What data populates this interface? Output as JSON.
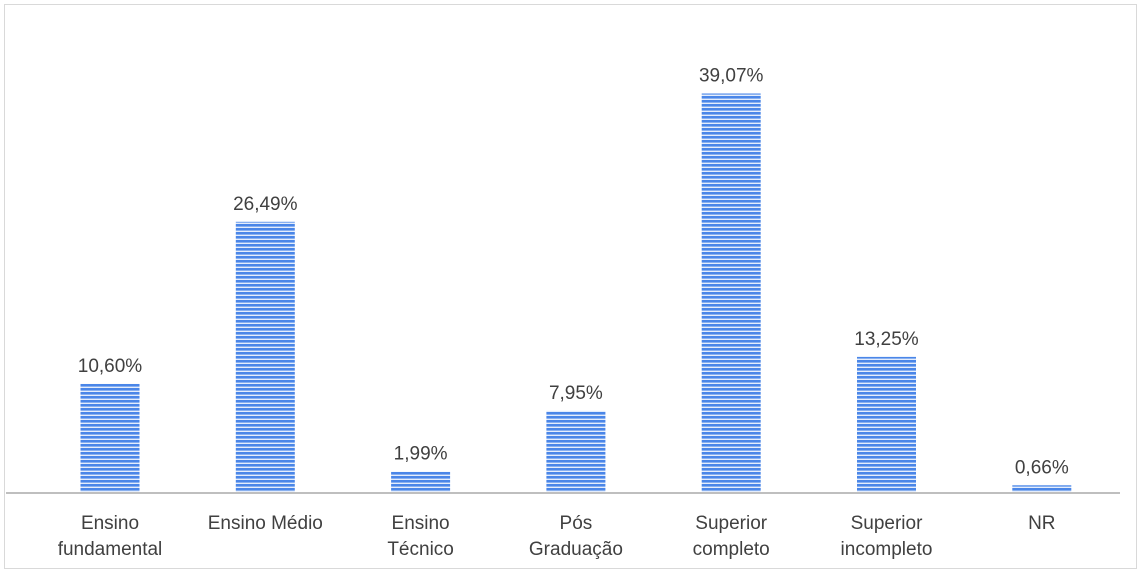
{
  "chart_data": {
    "type": "bar",
    "categories": [
      [
        "Ensino",
        "fundamental"
      ],
      [
        "Ensino Médio"
      ],
      [
        "Ensino",
        "Técnico"
      ],
      [
        "Pós",
        "Graduação"
      ],
      [
        "Superior",
        "completo"
      ],
      [
        "Superior",
        "incompleto"
      ],
      [
        "NR"
      ]
    ],
    "values": [
      10.6,
      26.49,
      1.99,
      7.95,
      39.07,
      13.25,
      0.66
    ],
    "data_labels": [
      "10,60%",
      "26,49%",
      "1,99%",
      "7,95%",
      "39,07%",
      "13,25%",
      "0,66%"
    ],
    "title": "",
    "xlabel": "",
    "ylabel": "",
    "ylim": [
      0,
      45
    ],
    "grid": false,
    "legend": "none",
    "bar_color": "#4a86e8",
    "bar_stripe_color": "#ffffff",
    "axis_color": "#bfbfbf",
    "text_color": "#404040"
  }
}
